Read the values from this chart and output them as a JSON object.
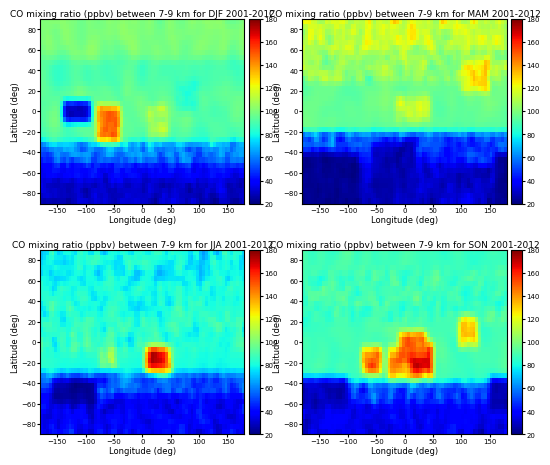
{
  "titles": [
    "CO mixing ratio (ppbv) between 7-9 km for DJF 2001-2012",
    "CO mixing ratio (ppbv) between 7-9 km for MAM 2001-2012",
    "CO mixing ratio (ppbv) between 7-9 km for JJA 2001-2012",
    "CO mixing ratio (ppbv) between 7-9 km for SON 2001-2012"
  ],
  "xlabel": "Longitude (deg)",
  "ylabel": "Latitude (deg)",
  "vmin": 20,
  "vmax": 180,
  "cbar_ticks": [
    20,
    40,
    60,
    80,
    100,
    120,
    140,
    160,
    180
  ],
  "lon_ticks": [
    -150,
    -100,
    -50,
    0,
    50,
    100,
    150
  ],
  "lat_ticks": [
    -80,
    -60,
    -40,
    -20,
    0,
    20,
    40,
    60,
    80
  ],
  "lon_lim": [
    -180,
    180
  ],
  "lat_lim": [
    -90,
    90
  ],
  "title_fontsize": 6.5,
  "label_fontsize": 6,
  "tick_fontsize": 5
}
